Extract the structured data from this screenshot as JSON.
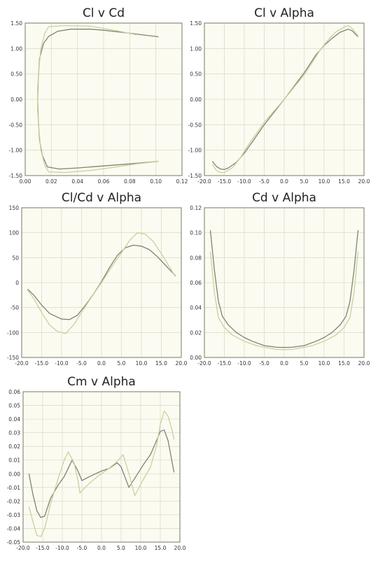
{
  "colors": {
    "plot_bg": "#fbfbf2",
    "grid": "#ddddc8",
    "axis": "#777766",
    "series_dark": "#7f8471",
    "series_light": "#c7d39a"
  },
  "chart_data": [
    {
      "type": "line",
      "title": "Cl v Cd",
      "xlim": [
        0,
        0.12
      ],
      "ylim": [
        -1.5,
        1.5
      ],
      "xticks": [
        "0.00",
        "0.02",
        "0.04",
        "0.06",
        "0.08",
        "0.10",
        "0.12"
      ],
      "yticks": [
        "1.50",
        "1.00",
        "0.50",
        "0.00",
        "-0.50",
        "-1.00",
        "-1.50"
      ],
      "grid": true,
      "series": [
        {
          "color": "dark",
          "points": [
            [
              0.102,
              -1.22
            ],
            [
              0.08,
              -1.27
            ],
            [
              0.06,
              -1.31
            ],
            [
              0.04,
              -1.35
            ],
            [
              0.026,
              -1.37
            ],
            [
              0.017,
              -1.33
            ],
            [
              0.013,
              -1.1
            ],
            [
              0.011,
              -0.8
            ],
            [
              0.01,
              -0.4
            ],
            [
              0.0095,
              0.0
            ],
            [
              0.01,
              0.4
            ],
            [
              0.011,
              0.8
            ],
            [
              0.014,
              1.1
            ],
            [
              0.018,
              1.24
            ],
            [
              0.025,
              1.34
            ],
            [
              0.035,
              1.38
            ],
            [
              0.05,
              1.38
            ],
            [
              0.06,
              1.36
            ],
            [
              0.08,
              1.3
            ],
            [
              0.102,
              1.23
            ]
          ]
        },
        {
          "color": "light",
          "points": [
            [
              0.102,
              -1.22
            ],
            [
              0.085,
              -1.27
            ],
            [
              0.07,
              -1.33
            ],
            [
              0.05,
              -1.4
            ],
            [
              0.03,
              -1.44
            ],
            [
              0.018,
              -1.43
            ],
            [
              0.015,
              -1.3
            ],
            [
              0.012,
              -1.0
            ],
            [
              0.0105,
              -0.6
            ],
            [
              0.0095,
              -0.2
            ],
            [
              0.0095,
              0.2
            ],
            [
              0.0105,
              0.6
            ],
            [
              0.012,
              1.0
            ],
            [
              0.015,
              1.3
            ],
            [
              0.018,
              1.43
            ],
            [
              0.03,
              1.45
            ],
            [
              0.05,
              1.44
            ],
            [
              0.07,
              1.35
            ],
            [
              0.085,
              1.27
            ]
          ]
        }
      ]
    },
    {
      "type": "line",
      "title": "Cl v Alpha",
      "xlim": [
        -20,
        20
      ],
      "ylim": [
        -1.5,
        1.5
      ],
      "xticks": [
        "-20.0",
        "-15.0",
        "-10.0",
        "-5.0",
        "0.0",
        "5.0",
        "10.0",
        "15.0",
        "20.0"
      ],
      "yticks": [
        "1.50",
        "1.00",
        "0.50",
        "0.00",
        "-0.50",
        "-1.00",
        "-1.50"
      ],
      "grid": true,
      "series": [
        {
          "color": "dark",
          "points": [
            [
              -18,
              -1.22
            ],
            [
              -17,
              -1.32
            ],
            [
              -16,
              -1.37
            ],
            [
              -15,
              -1.38
            ],
            [
              -14,
              -1.35
            ],
            [
              -12,
              -1.24
            ],
            [
              -10,
              -1.06
            ],
            [
              -8,
              -0.84
            ],
            [
              -5,
              -0.5
            ],
            [
              0,
              0.0
            ],
            [
              5,
              0.52
            ],
            [
              8,
              0.88
            ],
            [
              10,
              1.06
            ],
            [
              12,
              1.2
            ],
            [
              14,
              1.32
            ],
            [
              16,
              1.38
            ],
            [
              17,
              1.35
            ],
            [
              18.5,
              1.23
            ]
          ]
        },
        {
          "color": "light",
          "points": [
            [
              -18,
              -1.28
            ],
            [
              -17,
              -1.4
            ],
            [
              -16,
              -1.44
            ],
            [
              -15,
              -1.44
            ],
            [
              -13,
              -1.35
            ],
            [
              -11,
              -1.15
            ],
            [
              -9,
              -0.9
            ],
            [
              -5,
              -0.45
            ],
            [
              0,
              0.0
            ],
            [
              5,
              0.48
            ],
            [
              7,
              0.72
            ],
            [
              9,
              0.97
            ],
            [
              11,
              1.17
            ],
            [
              13,
              1.33
            ],
            [
              15,
              1.42
            ],
            [
              16,
              1.45
            ],
            [
              17,
              1.4
            ],
            [
              18.5,
              1.25
            ]
          ]
        }
      ]
    },
    {
      "type": "line",
      "title": "Cl/Cd v Alpha",
      "xlim": [
        -20,
        20
      ],
      "ylim": [
        -150,
        150
      ],
      "xticks": [
        "-20.0",
        "-15.0",
        "-10.0",
        "-5.0",
        "0.0",
        "5.0",
        "10.0",
        "15.0",
        "20.0"
      ],
      "yticks": [
        "150",
        "100",
        "50",
        "0",
        "-50",
        "-100",
        "-150"
      ],
      "grid": true,
      "series": [
        {
          "color": "dark",
          "points": [
            [
              -18.5,
              -13
            ],
            [
              -17,
              -25
            ],
            [
              -15,
              -45
            ],
            [
              -13,
              -62
            ],
            [
              -10,
              -73
            ],
            [
              -8,
              -74
            ],
            [
              -6,
              -65
            ],
            [
              -4,
              -45
            ],
            [
              -2,
              -23
            ],
            [
              0,
              2
            ],
            [
              2,
              30
            ],
            [
              4,
              55
            ],
            [
              6,
              70
            ],
            [
              8,
              75
            ],
            [
              10,
              73
            ],
            [
              12,
              66
            ],
            [
              14,
              52
            ],
            [
              16,
              35
            ],
            [
              18.5,
              14
            ]
          ]
        },
        {
          "color": "light",
          "points": [
            [
              -18.5,
              -15
            ],
            [
              -17,
              -32
            ],
            [
              -15,
              -60
            ],
            [
              -13,
              -85
            ],
            [
              -11,
              -98
            ],
            [
              -9,
              -102
            ],
            [
              -7,
              -85
            ],
            [
              -5,
              -60
            ],
            [
              -3,
              -35
            ],
            [
              0,
              0
            ],
            [
              3,
              37
            ],
            [
              5,
              60
            ],
            [
              7,
              84
            ],
            [
              9,
              100
            ],
            [
              11,
              97
            ],
            [
              13,
              82
            ],
            [
              15,
              58
            ],
            [
              17,
              32
            ],
            [
              18.5,
              12
            ]
          ]
        }
      ]
    },
    {
      "type": "line",
      "title": "Cd v Alpha",
      "xlim": [
        -20,
        20
      ],
      "ylim": [
        0,
        0.12
      ],
      "xticks": [
        "-20.0",
        "-15.0",
        "-10.0",
        "-5.0",
        "0.0",
        "5.0",
        "10.0",
        "15.0",
        "20.0"
      ],
      "yticks": [
        "0.12",
        "0.10",
        "0.08",
        "0.06",
        "0.04",
        "0.02",
        "0.00"
      ],
      "grid": true,
      "series": [
        {
          "color": "dark",
          "points": [
            [
              -18.5,
              0.102
            ],
            [
              -17.5,
              0.07
            ],
            [
              -16.5,
              0.045
            ],
            [
              -15.5,
              0.033
            ],
            [
              -14,
              0.026
            ],
            [
              -12,
              0.02
            ],
            [
              -10,
              0.016
            ],
            [
              -8,
              0.013
            ],
            [
              -5,
              0.0095
            ],
            [
              -2,
              0.0082
            ],
            [
              0,
              0.008
            ],
            [
              2,
              0.0082
            ],
            [
              5,
              0.0095
            ],
            [
              8,
              0.013
            ],
            [
              10,
              0.016
            ],
            [
              12,
              0.02
            ],
            [
              14,
              0.026
            ],
            [
              15.5,
              0.033
            ],
            [
              16.5,
              0.045
            ],
            [
              17.5,
              0.07
            ],
            [
              18.5,
              0.102
            ]
          ]
        },
        {
          "color": "light",
          "points": [
            [
              -18.5,
              0.085
            ],
            [
              -17.5,
              0.052
            ],
            [
              -16.5,
              0.032
            ],
            [
              -15,
              0.024
            ],
            [
              -13,
              0.018
            ],
            [
              -10,
              0.013
            ],
            [
              -7,
              0.0095
            ],
            [
              -4,
              0.0075
            ],
            [
              -2,
              0.0065
            ],
            [
              0,
              0.0062
            ],
            [
              2,
              0.0065
            ],
            [
              4,
              0.0075
            ],
            [
              7,
              0.0095
            ],
            [
              10,
              0.013
            ],
            [
              13,
              0.018
            ],
            [
              15,
              0.024
            ],
            [
              16.5,
              0.032
            ],
            [
              17.5,
              0.052
            ],
            [
              18.5,
              0.085
            ]
          ]
        }
      ]
    },
    {
      "type": "line",
      "title": "Cm v Alpha",
      "xlim": [
        -20,
        20
      ],
      "ylim": [
        -0.05,
        0.06
      ],
      "xticks": [
        "-20.0",
        "-15.0",
        "-10.0",
        "-5.0",
        "0.0",
        "5.0",
        "10.0",
        "15.0",
        "20.0"
      ],
      "yticks": [
        "0.06",
        "0.05",
        "0.04",
        "0.03",
        "0.02",
        "0.01",
        "0.00",
        "-0.01",
        "-0.02",
        "-0.03",
        "-0.04",
        "-0.05"
      ],
      "grid": true,
      "series": [
        {
          "color": "dark",
          "points": [
            [
              -18.5,
              0.0
            ],
            [
              -17.5,
              -0.015
            ],
            [
              -16.5,
              -0.027
            ],
            [
              -15.5,
              -0.032
            ],
            [
              -14.5,
              -0.031
            ],
            [
              -13,
              -0.018
            ],
            [
              -11,
              -0.008
            ],
            [
              -9.5,
              -0.002
            ],
            [
              -7.5,
              0.01
            ],
            [
              -6,
              0.002
            ],
            [
              -5,
              -0.005
            ],
            [
              -3,
              -0.002
            ],
            [
              0,
              0.002
            ],
            [
              2,
              0.004
            ],
            [
              4,
              0.008
            ],
            [
              5,
              0.005
            ],
            [
              7,
              -0.01
            ],
            [
              9,
              -0.001
            ],
            [
              11,
              0.008
            ],
            [
              12.5,
              0.014
            ],
            [
              14,
              0.024
            ],
            [
              15,
              0.031
            ],
            [
              16,
              0.032
            ],
            [
              17,
              0.024
            ],
            [
              18.5,
              0.001
            ]
          ]
        },
        {
          "color": "light",
          "points": [
            [
              -18.5,
              -0.024
            ],
            [
              -17.5,
              -0.035
            ],
            [
              -16.5,
              -0.045
            ],
            [
              -15.5,
              -0.046
            ],
            [
              -14.5,
              -0.04
            ],
            [
              -13,
              -0.022
            ],
            [
              -11,
              -0.003
            ],
            [
              -9.5,
              0.01
            ],
            [
              -8.5,
              0.016
            ],
            [
              -7,
              0.008
            ],
            [
              -6,
              -0.005
            ],
            [
              -5.5,
              -0.014
            ],
            [
              -3.5,
              -0.008
            ],
            [
              -1,
              -0.002
            ],
            [
              1.5,
              0.003
            ],
            [
              4,
              0.009
            ],
            [
              5.5,
              0.014
            ],
            [
              7,
              0.0
            ],
            [
              8.5,
              -0.016
            ],
            [
              10.5,
              -0.005
            ],
            [
              12.5,
              0.005
            ],
            [
              14,
              0.02
            ],
            [
              15,
              0.036
            ],
            [
              16,
              0.046
            ],
            [
              17,
              0.042
            ],
            [
              18,
              0.032
            ],
            [
              18.5,
              0.025
            ]
          ]
        }
      ]
    }
  ]
}
